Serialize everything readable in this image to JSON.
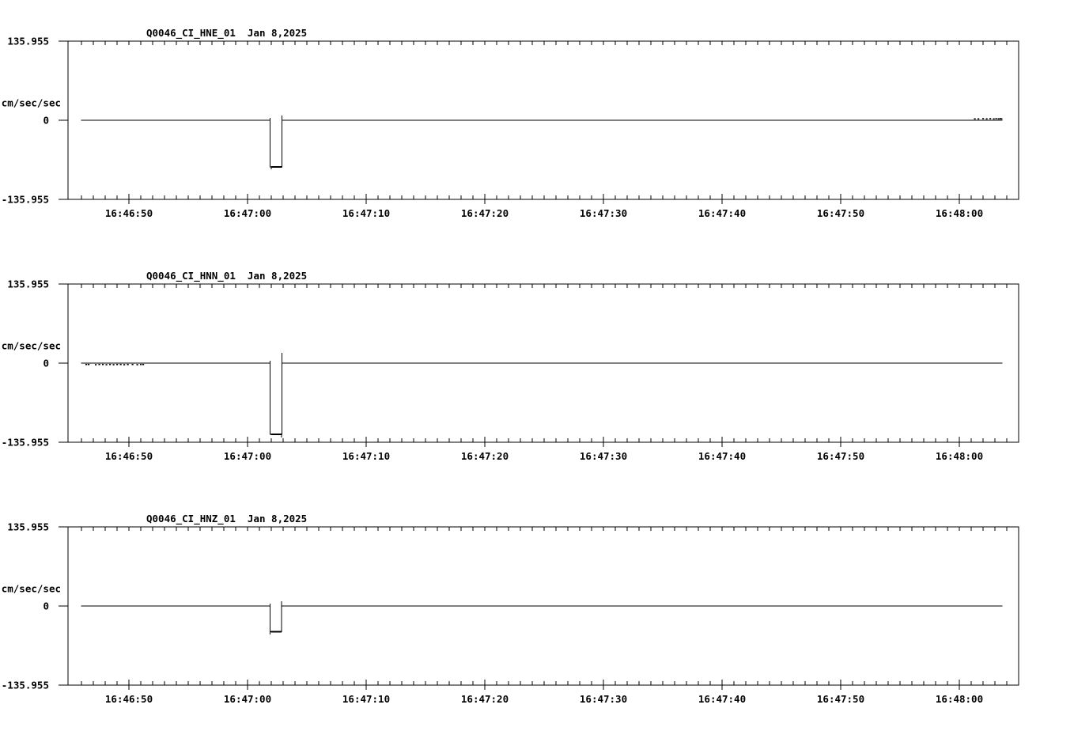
{
  "page": {
    "background": "#ffffff",
    "foreground": "#000000",
    "description_units": "cm/sec/sec"
  },
  "chart_data": [
    {
      "type": "line",
      "id": "hne",
      "channel": "HNE",
      "title": "Q0046_CI_HNE_01  Jan 8,2025",
      "station_channel": "Q0046_CI_HNE_01",
      "date": "Jan 8,2025",
      "ylabel": "cm/sec/sec",
      "ylim": [
        -135.955,
        135.955
      ],
      "yticks": [
        {
          "value": 135.955,
          "label": "135.955"
        },
        {
          "value": 0,
          "label": "0"
        },
        {
          "value": -135.955,
          "label": "-135.955"
        }
      ],
      "x_start_time": "16:46:45",
      "x_span_seconds": 80,
      "x_minor_tick_interval_s": 1,
      "xticks": [
        {
          "t": 5,
          "label": "16:46:50"
        },
        {
          "t": 15,
          "label": "16:47:00"
        },
        {
          "t": 25,
          "label": "16:47:10"
        },
        {
          "t": 35,
          "label": "16:47:20"
        },
        {
          "t": 45,
          "label": "16:47:30"
        },
        {
          "t": 55,
          "label": "16:47:40"
        },
        {
          "t": 65,
          "label": "16:47:50"
        },
        {
          "t": 75,
          "label": "16:48:00"
        }
      ],
      "pulse": {
        "onset": "16:47:02",
        "end": "16:47:03",
        "amplitude": -80.2
      },
      "series": {
        "name": "Q0046_CI_HNE_01",
        "units": "cm/sec/sec",
        "points": [
          [
            1.0,
            0
          ],
          [
            16.9,
            0
          ],
          [
            16.9,
            3.8
          ],
          [
            16.9,
            -80.2
          ],
          [
            17.0,
            -80.2
          ],
          [
            17.0,
            -84.3
          ],
          [
            17.0,
            -80.2
          ],
          [
            17.9,
            -80.2
          ],
          [
            17.9,
            8.2
          ],
          [
            17.9,
            0
          ],
          [
            78.6,
            0
          ]
        ]
      },
      "emphasis_segment": {
        "t1": 17.0,
        "t2": 17.9,
        "v": -80.2
      },
      "noise_marks": [
        [
          76.3,
          1.8
        ],
        [
          76.6,
          1.8
        ],
        [
          77.0,
          2.2
        ],
        [
          77.3,
          1.8
        ],
        [
          77.6,
          2.2
        ],
        [
          77.9,
          1.8
        ],
        [
          78.1,
          2.2
        ],
        [
          78.3,
          1.8
        ],
        [
          78.45,
          2.2
        ],
        [
          78.55,
          1.8
        ]
      ]
    },
    {
      "type": "line",
      "id": "hnn",
      "channel": "HNN",
      "title": "Q0046_CI_HNN_01  Jan 8,2025",
      "station_channel": "Q0046_CI_HNN_01",
      "date": "Jan 8,2025",
      "ylabel": "cm/sec/sec",
      "ylim": [
        -135.955,
        135.955
      ],
      "yticks": [
        {
          "value": 135.955,
          "label": "135.955"
        },
        {
          "value": 0,
          "label": "0"
        },
        {
          "value": -135.955,
          "label": "-135.955"
        }
      ],
      "x_start_time": "16:46:45",
      "x_span_seconds": 80,
      "x_minor_tick_interval_s": 1,
      "xticks": [
        {
          "t": 5,
          "label": "16:46:50"
        },
        {
          "t": 15,
          "label": "16:47:00"
        },
        {
          "t": 25,
          "label": "16:47:10"
        },
        {
          "t": 35,
          "label": "16:47:20"
        },
        {
          "t": 45,
          "label": "16:47:30"
        },
        {
          "t": 55,
          "label": "16:47:40"
        },
        {
          "t": 65,
          "label": "16:47:50"
        },
        {
          "t": 75,
          "label": "16:48:00"
        }
      ],
      "pulse": {
        "onset": "16:47:02",
        "end": "16:47:03",
        "amplitude": -122.3
      },
      "series": {
        "name": "Q0046_CI_HNN_01",
        "units": "cm/sec/sec",
        "points": [
          [
            1.0,
            0
          ],
          [
            16.9,
            0
          ],
          [
            16.9,
            3.8
          ],
          [
            16.9,
            -122.3
          ],
          [
            17.85,
            -122.3
          ],
          [
            17.85,
            -128.0
          ],
          [
            17.85,
            -122.3
          ],
          [
            17.9,
            -122.3
          ],
          [
            17.9,
            17.7
          ],
          [
            17.9,
            0
          ],
          [
            78.6,
            0
          ]
        ]
      },
      "emphasis_segment": {
        "t1": 16.95,
        "t2": 17.85,
        "v": -122.3
      },
      "noise_marks": [
        [
          1.4,
          -1.8
        ],
        [
          1.6,
          -1.8
        ],
        [
          2.2,
          -2.2
        ],
        [
          2.5,
          -1.8
        ],
        [
          2.8,
          -1.8
        ],
        [
          3.1,
          -2.2
        ],
        [
          3.4,
          -1.8
        ],
        [
          3.7,
          -2.2
        ],
        [
          4.0,
          -1.8
        ],
        [
          4.3,
          -1.8
        ],
        [
          4.6,
          -2.2
        ],
        [
          4.9,
          -1.8
        ],
        [
          5.3,
          -1.8
        ],
        [
          5.7,
          -2.2
        ],
        [
          6.0,
          -1.8
        ],
        [
          6.2,
          -1.8
        ]
      ]
    },
    {
      "type": "line",
      "id": "hnz",
      "channel": "HNZ",
      "title": "Q0046_CI_HNZ_01  Jan 8,2025",
      "station_channel": "Q0046_CI_HNZ_01",
      "date": "Jan 8,2025",
      "ylabel": "cm/sec/sec",
      "ylim": [
        -135.955,
        135.955
      ],
      "yticks": [
        {
          "value": 135.955,
          "label": "135.955"
        },
        {
          "value": 0,
          "label": "0"
        },
        {
          "value": -135.955,
          "label": "-135.955"
        }
      ],
      "x_start_time": "16:46:45",
      "x_span_seconds": 80,
      "x_minor_tick_interval_s": 1,
      "xticks": [
        {
          "t": 5,
          "label": "16:46:50"
        },
        {
          "t": 15,
          "label": "16:47:00"
        },
        {
          "t": 25,
          "label": "16:47:10"
        },
        {
          "t": 35,
          "label": "16:47:20"
        },
        {
          "t": 45,
          "label": "16:47:30"
        },
        {
          "t": 55,
          "label": "16:47:40"
        },
        {
          "t": 65,
          "label": "16:47:50"
        },
        {
          "t": 75,
          "label": "16:48:00"
        }
      ],
      "pulse": {
        "onset": "16:47:02",
        "end": "16:47:03",
        "amplitude": -44.2
      },
      "series": {
        "name": "Q0046_CI_HNZ_01",
        "units": "cm/sec/sec",
        "points": [
          [
            1.0,
            0
          ],
          [
            16.9,
            0
          ],
          [
            16.9,
            3.8
          ],
          [
            16.9,
            -49.0
          ],
          [
            16.9,
            -44.2
          ],
          [
            17.0,
            -44.2
          ],
          [
            17.85,
            -44.2
          ],
          [
            17.85,
            8.2
          ],
          [
            17.85,
            0
          ],
          [
            78.6,
            0
          ]
        ]
      },
      "emphasis_segment": {
        "t1": 16.95,
        "t2": 17.85,
        "v": -44.2
      },
      "noise_marks": []
    }
  ]
}
